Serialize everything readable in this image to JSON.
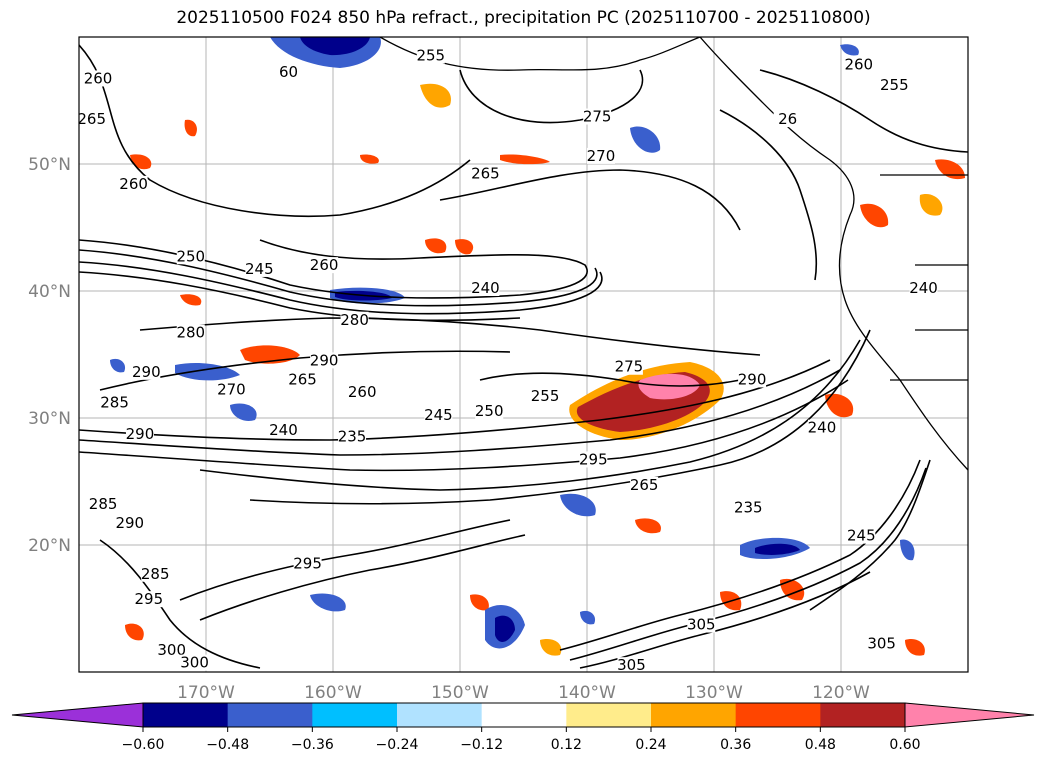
{
  "title": "2025110500 F024 850 hPa refract., precipitation PC (2025110700 - 2025110800)",
  "map": {
    "lat_labels": [
      "50°N",
      "40°N",
      "30°N",
      "20°N"
    ],
    "lon_labels": [
      "170°W",
      "160°W",
      "150°W",
      "140°W",
      "130°W",
      "120°W"
    ],
    "contour_labels": [
      {
        "text": "260",
        "lon": -178.5,
        "lat": 56.5
      },
      {
        "text": "265",
        "lon": -179.0,
        "lat": 53.3
      },
      {
        "text": "260",
        "lon": -175.7,
        "lat": 48.2
      },
      {
        "text": "60",
        "lon": -163.5,
        "lat": 57.0
      },
      {
        "text": "255",
        "lon": -152.3,
        "lat": 58.3
      },
      {
        "text": "275",
        "lon": -139.2,
        "lat": 53.5
      },
      {
        "text": "270",
        "lon": -138.9,
        "lat": 50.4
      },
      {
        "text": "265",
        "lon": -148.0,
        "lat": 49.0
      },
      {
        "text": "260",
        "lon": -118.6,
        "lat": 57.6
      },
      {
        "text": "255",
        "lon": -115.8,
        "lat": 56.0
      },
      {
        "text": "26",
        "lon": -124.2,
        "lat": 53.3
      },
      {
        "text": "250",
        "lon": -171.2,
        "lat": 42.5
      },
      {
        "text": "245",
        "lon": -165.8,
        "lat": 41.5
      },
      {
        "text": "260",
        "lon": -160.7,
        "lat": 41.8
      },
      {
        "text": "240",
        "lon": -148.0,
        "lat": 40.0
      },
      {
        "text": "280",
        "lon": -158.3,
        "lat": 37.5
      },
      {
        "text": "280",
        "lon": -171.2,
        "lat": 36.5
      },
      {
        "text": "290",
        "lon": -160.7,
        "lat": 34.3
      },
      {
        "text": "265",
        "lon": -162.4,
        "lat": 32.8
      },
      {
        "text": "270",
        "lon": -168.0,
        "lat": 32.0
      },
      {
        "text": "260",
        "lon": -157.7,
        "lat": 31.8
      },
      {
        "text": "290",
        "lon": -174.7,
        "lat": 33.4
      },
      {
        "text": "285",
        "lon": -177.2,
        "lat": 31.0
      },
      {
        "text": "290",
        "lon": -175.2,
        "lat": 28.5
      },
      {
        "text": "245",
        "lon": -151.7,
        "lat": 30.0
      },
      {
        "text": "250",
        "lon": -147.7,
        "lat": 30.3
      },
      {
        "text": "255",
        "lon": -143.3,
        "lat": 31.5
      },
      {
        "text": "240",
        "lon": -163.9,
        "lat": 28.8
      },
      {
        "text": "235",
        "lon": -158.5,
        "lat": 28.3
      },
      {
        "text": "275",
        "lon": -136.7,
        "lat": 33.8
      },
      {
        "text": "290",
        "lon": -127.0,
        "lat": 32.8
      },
      {
        "text": "240",
        "lon": -121.5,
        "lat": 29.0
      },
      {
        "text": "295",
        "lon": -139.5,
        "lat": 26.5
      },
      {
        "text": "265",
        "lon": -135.5,
        "lat": 24.5
      },
      {
        "text": "235",
        "lon": -127.3,
        "lat": 22.7
      },
      {
        "text": "285",
        "lon": -178.1,
        "lat": 23.0
      },
      {
        "text": "290",
        "lon": -176.0,
        "lat": 21.5
      },
      {
        "text": "285",
        "lon": -174.0,
        "lat": 17.5
      },
      {
        "text": "295",
        "lon": -174.5,
        "lat": 15.5
      },
      {
        "text": "300",
        "lon": -172.7,
        "lat": 11.5
      },
      {
        "text": "300",
        "lon": -170.9,
        "lat": 10.5
      },
      {
        "text": "295",
        "lon": -162.0,
        "lat": 18.3
      },
      {
        "text": "305",
        "lon": -131.0,
        "lat": 13.5
      },
      {
        "text": "305",
        "lon": -136.5,
        "lat": 10.3
      },
      {
        "text": "305",
        "lon": -116.8,
        "lat": 12.0
      },
      {
        "text": "245",
        "lon": -118.4,
        "lat": 20.5
      },
      {
        "text": "240",
        "lon": -113.5,
        "lat": 40.0
      }
    ]
  },
  "colorbar": {
    "colors": [
      "#9b30d9",
      "#00008b",
      "#3a5fcd",
      "#00bfff",
      "#b0e2ff",
      "#ffffff",
      "#ffec8b",
      "#ffa500",
      "#ff4500",
      "#b22222",
      "#ff82ab"
    ],
    "tick_labels": [
      "−0.60",
      "−0.48",
      "−0.36",
      "−0.24",
      "−0.12",
      "0.12",
      "0.24",
      "0.36",
      "0.48",
      "0.60"
    ]
  }
}
